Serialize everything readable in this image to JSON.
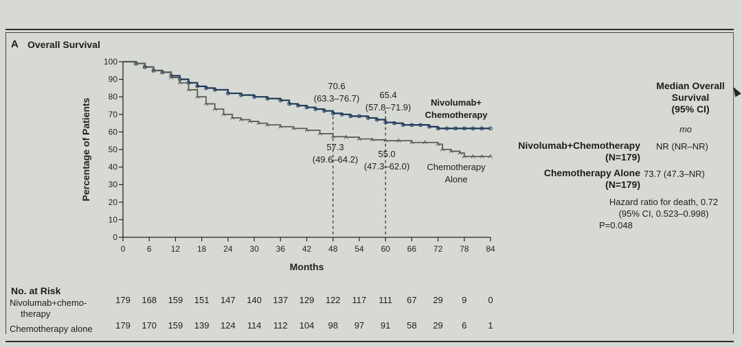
{
  "panel": {
    "letter": "A",
    "title": "Overall Survival"
  },
  "chart_data": {
    "type": "line",
    "title": "Overall Survival",
    "xlabel": "Months",
    "ylabel": "Percentage of Patients",
    "xlim": [
      0,
      84
    ],
    "ylim": [
      0,
      100
    ],
    "xticks": [
      0,
      6,
      12,
      18,
      24,
      30,
      36,
      42,
      48,
      54,
      60,
      66,
      72,
      78,
      84
    ],
    "yticks": [
      0,
      10,
      20,
      30,
      40,
      50,
      60,
      70,
      80,
      90,
      100
    ],
    "series": [
      {
        "name": "Nivolumab+Chemotherapy",
        "color": "#1d3a58",
        "x": [
          0,
          3,
          5,
          7,
          9,
          11,
          13,
          15,
          17,
          19,
          21,
          24,
          27,
          30,
          33,
          36,
          38,
          40,
          42,
          44,
          46,
          48,
          50,
          52,
          54,
          56,
          58,
          60,
          62,
          64,
          66,
          68,
          70,
          72,
          74,
          76,
          78,
          80,
          82,
          84
        ],
        "y": [
          100,
          99,
          97,
          95,
          94,
          92,
          90,
          88,
          86,
          85,
          84,
          82,
          81,
          80,
          79,
          78,
          76,
          75,
          74,
          73,
          72,
          70.6,
          70,
          69,
          69,
          68,
          67,
          65.4,
          65,
          64,
          64,
          64,
          63,
          62,
          62,
          62,
          62,
          62,
          62,
          62
        ]
      },
      {
        "name": "Chemotherapy Alone",
        "color": "#5d5a54",
        "x": [
          0,
          3,
          5,
          7,
          9,
          11,
          13,
          15,
          17,
          19,
          21,
          23,
          25,
          27,
          29,
          31,
          33,
          36,
          39,
          42,
          45,
          48,
          51,
          54,
          57,
          60,
          63,
          66,
          69,
          72,
          73,
          75,
          77,
          78,
          80,
          82,
          84
        ],
        "y": [
          100,
          99,
          97,
          95,
          94,
          91,
          88,
          84,
          80,
          76,
          73,
          70,
          68,
          67,
          66,
          65,
          64,
          63,
          62,
          61,
          59,
          57.3,
          57,
          56,
          55.5,
          55.0,
          55,
          54,
          54,
          53,
          50,
          49,
          48,
          46,
          46,
          46,
          46
        ]
      }
    ],
    "annotations": [
      {
        "x": 48,
        "nivo_value": "70.6",
        "nivo_ci": "(63.3–76.7)",
        "chemo_value": "57.3",
        "chemo_ci": "(49.6–64.2)"
      },
      {
        "x": 60,
        "nivo_value": "65.4",
        "nivo_ci": "(57.8–71.9)",
        "chemo_value": "55.0",
        "chemo_ci": "(47.3–62.0)"
      }
    ],
    "legend": {
      "nivo_line1": "Nivolumab+",
      "nivo_line2": "Chemotherapy",
      "chemo_line1": "Chemotherapy",
      "chemo_line2": "Alone"
    }
  },
  "median_table": {
    "header_line1": "Median Overall",
    "header_line2": "Survival",
    "header_line3": "(95% CI)",
    "unit": "mo",
    "rows": [
      {
        "label": "Nivolumab+Chemotherapy",
        "n": "(N=179)",
        "value": "NR (NR–NR)"
      },
      {
        "label": "Chemotherapy Alone",
        "n": "(N=179)",
        "value": "73.7 (47.3–NR)"
      }
    ],
    "hazard_line1": "Hazard ratio for death, 0.72",
    "hazard_line2": "(95% CI, 0.523–0.998)",
    "p_value": "P=0.048"
  },
  "at_risk": {
    "title": "No. at Risk",
    "rows": [
      {
        "label_line1": "Nivolumab+chemo-",
        "label_line2": "therapy",
        "values": [
          179,
          168,
          159,
          151,
          147,
          140,
          137,
          129,
          122,
          117,
          111,
          67,
          29,
          9,
          0
        ]
      },
      {
        "label_line1": "Chemotherapy alone",
        "label_line2": "",
        "values": [
          179,
          170,
          159,
          139,
          124,
          114,
          112,
          104,
          98,
          97,
          91,
          58,
          29,
          6,
          1
        ]
      }
    ]
  }
}
